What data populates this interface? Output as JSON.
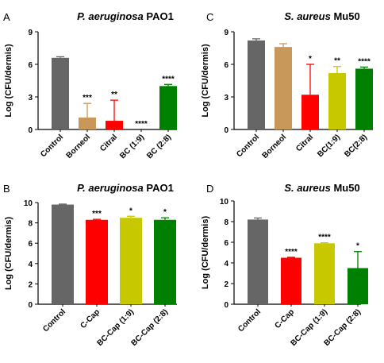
{
  "chart_data": [
    {
      "type": "bar",
      "panel_letter": "A",
      "title_italic": "P. aeruginosa",
      "title_rest": " PAO1",
      "ylabel": "Log (CFU/dermis)",
      "ylim": [
        0,
        9
      ],
      "yticks": [
        0,
        3,
        6,
        9
      ],
      "categories": [
        "Control",
        "Borneol",
        "Citral",
        "BC (1:9)",
        "BC (2:8)"
      ],
      "values": [
        6.6,
        1.1,
        0.8,
        0.0,
        4.0
      ],
      "errors": [
        0.1,
        1.3,
        1.9,
        0.0,
        0.15
      ],
      "colors": [
        "#666666",
        "#c8975a",
        "#ff0000",
        "#c8c800",
        "#008000"
      ],
      "significance": [
        "",
        "***",
        "**",
        "****",
        "****"
      ]
    },
    {
      "type": "bar",
      "panel_letter": "C",
      "title_italic": "S. aureus",
      "title_rest": " Mu50",
      "ylabel": "Log (CFU/dermis)",
      "ylim": [
        0,
        9
      ],
      "yticks": [
        0,
        3,
        6,
        9
      ],
      "categories": [
        "Control",
        "Borneol",
        "Citral",
        "BC(1:9)",
        "BC(2:8)"
      ],
      "values": [
        8.2,
        7.6,
        3.2,
        5.2,
        5.6
      ],
      "errors": [
        0.15,
        0.3,
        2.8,
        0.6,
        0.15
      ],
      "colors": [
        "#666666",
        "#c8975a",
        "#ff0000",
        "#c8c800",
        "#008000"
      ],
      "significance": [
        "",
        "",
        "*",
        "**",
        "****"
      ]
    },
    {
      "type": "bar",
      "panel_letter": "B",
      "title_italic": "P. aeruginosa",
      "title_rest": " PAO1",
      "ylabel": "Log (CFU/dermis)",
      "ylim": [
        0,
        10
      ],
      "yticks": [
        0,
        2,
        4,
        6,
        8,
        10
      ],
      "categories": [
        "Control",
        "C-Cap",
        "BC-Cap (1:9)",
        "BC-Cap (2:8)"
      ],
      "values": [
        9.8,
        8.3,
        8.5,
        8.3
      ],
      "errors": [
        0.05,
        0.05,
        0.15,
        0.2
      ],
      "colors": [
        "#666666",
        "#ff0000",
        "#c8c800",
        "#008000"
      ],
      "significance": [
        "",
        "***",
        "*",
        "*"
      ]
    },
    {
      "type": "bar",
      "panel_letter": "D",
      "title_italic": "S. aureus",
      "title_rest": " Mu50",
      "ylabel": "Log (CFU/dermis)",
      "ylim": [
        0,
        10
      ],
      "yticks": [
        0,
        2,
        4,
        6,
        8,
        10
      ],
      "categories": [
        "Control",
        "C-Cap",
        "BC-Cap (1:9)",
        "BC-Cap (2:8)"
      ],
      "values": [
        8.2,
        4.5,
        5.9,
        3.5
      ],
      "errors": [
        0.15,
        0.05,
        0.05,
        1.6
      ],
      "colors": [
        "#666666",
        "#ff0000",
        "#c8c800",
        "#008000"
      ],
      "significance": [
        "",
        "****",
        "****",
        "*"
      ]
    }
  ]
}
